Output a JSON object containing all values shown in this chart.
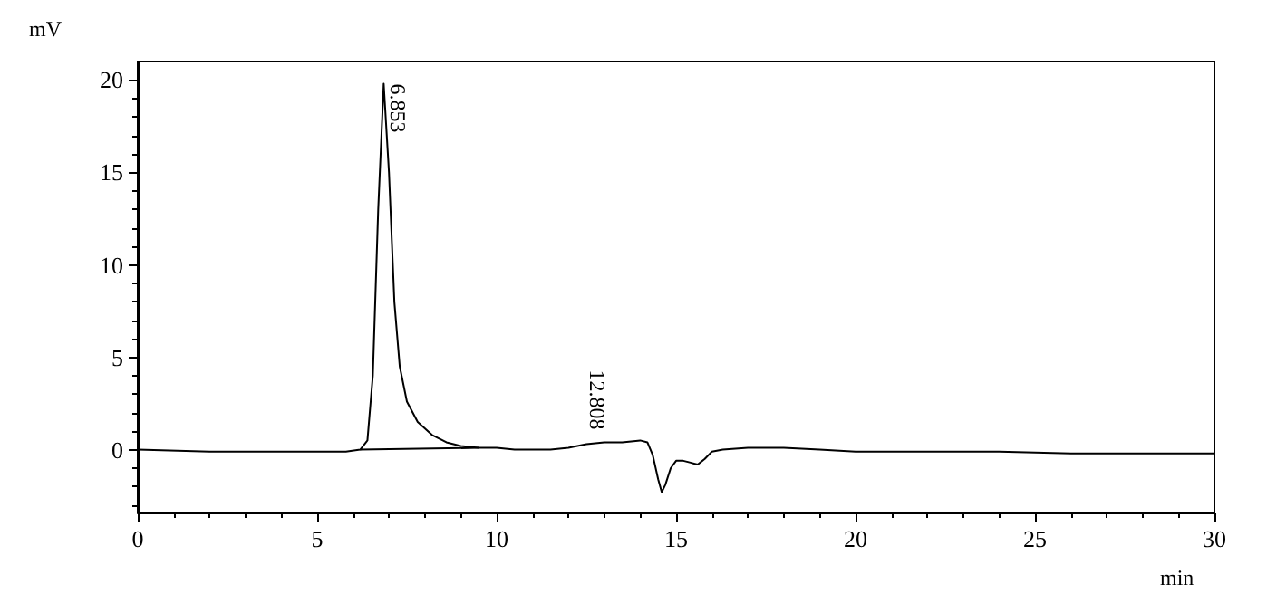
{
  "chart_data": {
    "type": "line",
    "xlabel": "min",
    "ylabel": "mV",
    "series": [
      {
        "color": "#000000",
        "x": [
          0,
          2,
          4,
          5,
          5.8,
          6.2,
          6.4,
          6.55,
          6.7,
          6.853,
          7.0,
          7.15,
          7.3,
          7.5,
          7.8,
          8.2,
          8.6,
          9.0,
          9.5,
          10,
          10.5,
          11,
          11.5,
          12,
          12.5,
          13,
          13.5,
          14,
          14.2,
          14.35,
          14.5,
          14.6,
          14.7,
          14.85,
          15.0,
          15.2,
          15.4,
          15.6,
          15.8,
          16.0,
          16.3,
          17,
          18,
          19,
          20,
          22,
          24,
          26,
          28,
          30
        ],
        "values": [
          0,
          -0.1,
          -0.1,
          -0.1,
          -0.1,
          0,
          0.5,
          4,
          13,
          19.8,
          15,
          8,
          4.5,
          2.6,
          1.5,
          0.8,
          0.4,
          0.2,
          0.1,
          0.1,
          0,
          0,
          0,
          0.1,
          0.3,
          0.4,
          0.4,
          0.5,
          0.4,
          -0.3,
          -1.6,
          -2.3,
          -1.9,
          -1.0,
          -0.6,
          -0.6,
          -0.7,
          -0.8,
          -0.5,
          -0.1,
          0,
          0.1,
          0.1,
          0,
          -0.1,
          -0.1,
          -0.1,
          -0.2,
          -0.2,
          -0.2
        ]
      },
      {
        "color": "#000000",
        "x": [
          6.2,
          9.5
        ],
        "values": [
          0,
          0.1
        ]
      }
    ],
    "annotations": [
      {
        "text": "6.853",
        "x": 6.853,
        "y": 19.8
      },
      {
        "text": "12.808",
        "x": 12.808,
        "y": 0.3
      }
    ],
    "xlim": [
      0,
      30
    ],
    "xticks": [
      0,
      5,
      10,
      15,
      20,
      25,
      30
    ],
    "ylim": [
      -3.4,
      21
    ],
    "yticks": [
      0,
      5,
      10,
      15,
      20
    ],
    "grid": false,
    "marker": "none",
    "line_style": "solid"
  }
}
